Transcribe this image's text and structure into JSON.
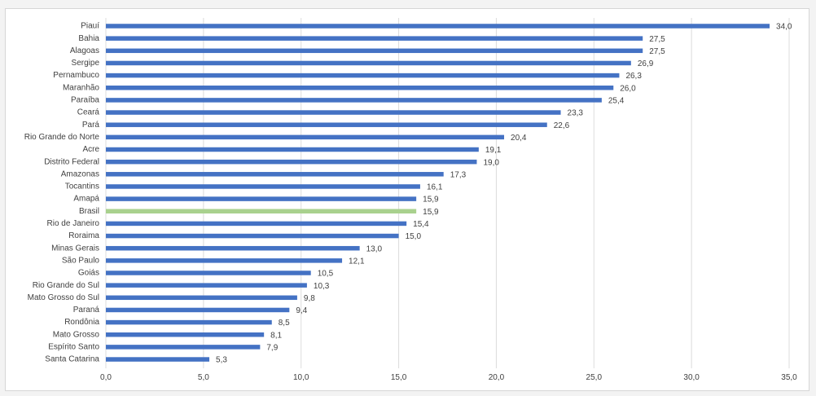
{
  "chart_data": {
    "type": "bar",
    "orientation": "horizontal",
    "categories": [
      "Piauí",
      "Bahia",
      "Alagoas",
      "Sergipe",
      "Pernambuco",
      "Maranhão",
      "Paraíba",
      "Ceará",
      "Pará",
      "Rio Grande do Norte",
      "Acre",
      "Distrito Federal",
      "Amazonas",
      "Tocantins",
      "Amapá",
      "Brasil",
      "Rio de Janeiro",
      "Roraima",
      "Minas Gerais",
      "São Paulo",
      "Goiás",
      "Rio Grande do Sul",
      "Mato Grosso do Sul",
      "Paraná",
      "Rondônia",
      "Mato Grosso",
      "Espírito Santo",
      "Santa Catarina"
    ],
    "values": [
      34.0,
      27.5,
      27.5,
      26.9,
      26.3,
      26.0,
      25.4,
      23.3,
      22.6,
      20.4,
      19.1,
      19.0,
      17.3,
      16.1,
      15.9,
      15.9,
      15.4,
      15.0,
      13.0,
      12.1,
      10.5,
      10.3,
      9.8,
      9.4,
      8.5,
      8.1,
      7.9,
      5.3
    ],
    "value_labels": [
      "34,0",
      "27,5",
      "27,5",
      "26,9",
      "26,3",
      "26,0",
      "25,4",
      "23,3",
      "22,6",
      "20,4",
      "19,1",
      "19,0",
      "17,3",
      "16,1",
      "15,9",
      "15,9",
      "15,4",
      "15,0",
      "13,0",
      "12,1",
      "10,5",
      "10,3",
      "9,8",
      "9,4",
      "8,5",
      "8,1",
      "7,9",
      "5,3"
    ],
    "xlim": [
      0,
      35
    ],
    "x_ticks": [
      0,
      5,
      10,
      15,
      20,
      25,
      30,
      35
    ],
    "x_tick_labels": [
      "0,0",
      "5,0",
      "10,0",
      "15,0",
      "20,0",
      "25,0",
      "30,0",
      "35,0"
    ],
    "grid": "vertical",
    "legend": "none",
    "title": "",
    "xlabel": "",
    "ylabel": "",
    "colors": {
      "bar": "#4472c4",
      "highlight": "#a9d18e",
      "highlight_category": "Brasil",
      "grid": "#dcdcdc",
      "text": "#404040"
    }
  }
}
